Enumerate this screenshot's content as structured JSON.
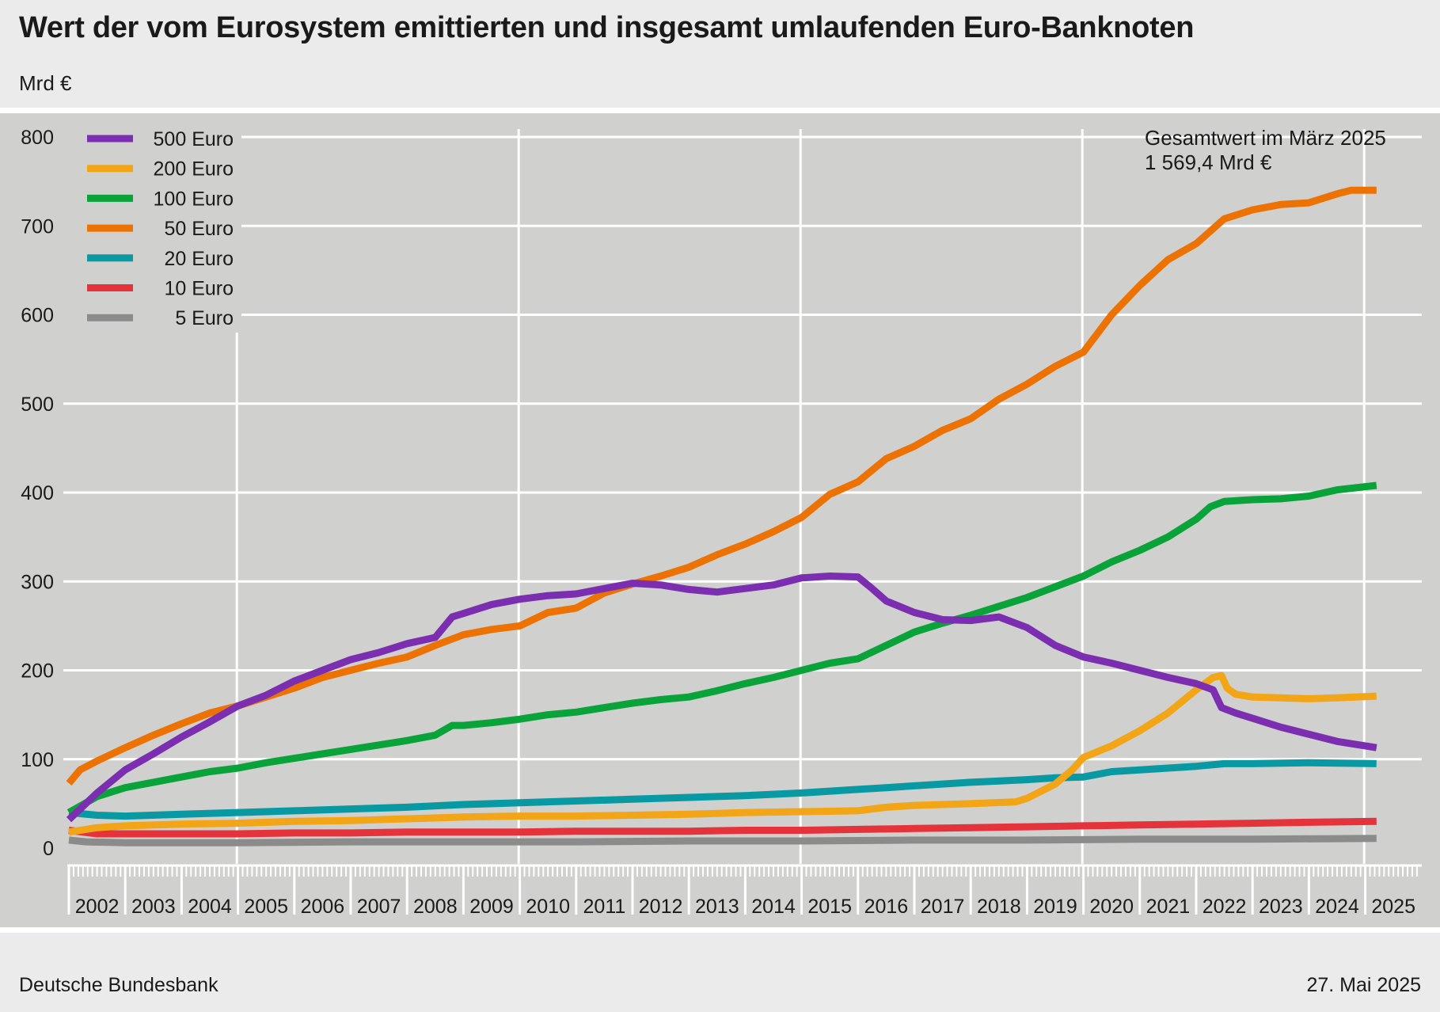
{
  "title": "Wert der vom Eurosystem emittierten und insgesamt umlaufenden Euro-Banknoten",
  "unit": "Mrd €",
  "source": "Deutsche Bundesbank",
  "date": "27. Mai 2025",
  "annotation": {
    "line1": "Gesamtwert im März 2025",
    "line2": "1 569,4 Mrd €"
  },
  "chart_data": {
    "type": "line",
    "title": "Wert der vom Eurosystem emittierten und insgesamt umlaufenden Euro-Banknoten",
    "ylabel": "Mrd €",
    "xlabel": "",
    "ylim": [
      0,
      800
    ],
    "yticks": [
      0,
      100,
      200,
      300,
      400,
      500,
      600,
      700,
      800
    ],
    "xlim": [
      2002,
      2025.25
    ],
    "xtick_labels": [
      "2002",
      "2003",
      "2004",
      "2005",
      "2006",
      "2007",
      "2008",
      "2009",
      "2010",
      "2011",
      "2012",
      "2013",
      "2014",
      "2015",
      "2016",
      "2017",
      "2018",
      "2019",
      "2020",
      "2021",
      "2022",
      "2023",
      "2024",
      "2025"
    ],
    "grid": true,
    "legend_position": "top-left",
    "series": [
      {
        "name": "500 Euro",
        "color": "#7b2fb0",
        "points": [
          [
            2002.0,
            32
          ],
          [
            2002.5,
            62
          ],
          [
            2003.0,
            88
          ],
          [
            2003.5,
            106
          ],
          [
            2004.0,
            125
          ],
          [
            2004.5,
            142
          ],
          [
            2005.0,
            160
          ],
          [
            2005.5,
            172
          ],
          [
            2006.0,
            188
          ],
          [
            2006.5,
            200
          ],
          [
            2007.0,
            212
          ],
          [
            2007.5,
            220
          ],
          [
            2008.0,
            230
          ],
          [
            2008.5,
            237
          ],
          [
            2008.8,
            260
          ],
          [
            2009.0,
            264
          ],
          [
            2009.5,
            274
          ],
          [
            2010.0,
            280
          ],
          [
            2010.5,
            284
          ],
          [
            2011.0,
            286
          ],
          [
            2011.5,
            292
          ],
          [
            2012.0,
            298
          ],
          [
            2012.5,
            296
          ],
          [
            2013.0,
            291
          ],
          [
            2013.5,
            288
          ],
          [
            2014.0,
            292
          ],
          [
            2014.5,
            296
          ],
          [
            2015.0,
            304
          ],
          [
            2015.5,
            306
          ],
          [
            2016.0,
            305
          ],
          [
            2016.25,
            292
          ],
          [
            2016.5,
            278
          ],
          [
            2017.0,
            265
          ],
          [
            2017.5,
            257
          ],
          [
            2018.0,
            256
          ],
          [
            2018.5,
            260
          ],
          [
            2019.0,
            248
          ],
          [
            2019.5,
            228
          ],
          [
            2020.0,
            215
          ],
          [
            2020.5,
            208
          ],
          [
            2021.0,
            200
          ],
          [
            2021.5,
            192
          ],
          [
            2022.0,
            185
          ],
          [
            2022.3,
            178
          ],
          [
            2022.45,
            158
          ],
          [
            2022.7,
            152
          ],
          [
            2023.0,
            146
          ],
          [
            2023.5,
            136
          ],
          [
            2024.0,
            128
          ],
          [
            2024.5,
            120
          ],
          [
            2025.2,
            113
          ]
        ]
      },
      {
        "name": "200 Euro",
        "color": "#f2a516",
        "points": [
          [
            2002.0,
            18
          ],
          [
            2002.5,
            23
          ],
          [
            2003.0,
            25
          ],
          [
            2004.0,
            27
          ],
          [
            2005.0,
            28
          ],
          [
            2006.0,
            30
          ],
          [
            2007.0,
            31
          ],
          [
            2008.0,
            33
          ],
          [
            2008.6,
            34
          ],
          [
            2009.0,
            35
          ],
          [
            2010.0,
            36
          ],
          [
            2011.0,
            36
          ],
          [
            2012.0,
            37
          ],
          [
            2013.0,
            38
          ],
          [
            2014.0,
            40
          ],
          [
            2015.0,
            41
          ],
          [
            2016.0,
            42
          ],
          [
            2016.5,
            46
          ],
          [
            2017.0,
            48
          ],
          [
            2018.0,
            50
          ],
          [
            2018.8,
            52
          ],
          [
            2019.0,
            56
          ],
          [
            2019.5,
            72
          ],
          [
            2019.8,
            88
          ],
          [
            2020.0,
            102
          ],
          [
            2020.5,
            115
          ],
          [
            2021.0,
            132
          ],
          [
            2021.5,
            152
          ],
          [
            2022.0,
            178
          ],
          [
            2022.3,
            192
          ],
          [
            2022.45,
            194
          ],
          [
            2022.55,
            180
          ],
          [
            2022.7,
            173
          ],
          [
            2023.0,
            170
          ],
          [
            2023.5,
            169
          ],
          [
            2024.0,
            168
          ],
          [
            2024.5,
            169
          ],
          [
            2025.2,
            171
          ]
        ]
      },
      {
        "name": "100 Euro",
        "color": "#09a33a",
        "points": [
          [
            2002.0,
            40
          ],
          [
            2002.5,
            58
          ],
          [
            2003.0,
            68
          ],
          [
            2003.5,
            74
          ],
          [
            2004.0,
            80
          ],
          [
            2004.5,
            86
          ],
          [
            2005.0,
            90
          ],
          [
            2005.5,
            96
          ],
          [
            2006.0,
            101
          ],
          [
            2006.5,
            106
          ],
          [
            2007.0,
            111
          ],
          [
            2007.5,
            116
          ],
          [
            2008.0,
            121
          ],
          [
            2008.5,
            127
          ],
          [
            2008.8,
            138
          ],
          [
            2009.0,
            138
          ],
          [
            2009.5,
            141
          ],
          [
            2010.0,
            145
          ],
          [
            2010.5,
            150
          ],
          [
            2011.0,
            153
          ],
          [
            2011.5,
            158
          ],
          [
            2012.0,
            163
          ],
          [
            2012.5,
            167
          ],
          [
            2013.0,
            170
          ],
          [
            2013.5,
            177
          ],
          [
            2014.0,
            185
          ],
          [
            2014.5,
            192
          ],
          [
            2015.0,
            200
          ],
          [
            2015.5,
            208
          ],
          [
            2016.0,
            213
          ],
          [
            2016.5,
            228
          ],
          [
            2017.0,
            243
          ],
          [
            2017.5,
            253
          ],
          [
            2018.0,
            262
          ],
          [
            2018.5,
            272
          ],
          [
            2019.0,
            282
          ],
          [
            2019.5,
            294
          ],
          [
            2020.0,
            306
          ],
          [
            2020.5,
            322
          ],
          [
            2021.0,
            335
          ],
          [
            2021.5,
            350
          ],
          [
            2022.0,
            370
          ],
          [
            2022.25,
            384
          ],
          [
            2022.5,
            390
          ],
          [
            2023.0,
            392
          ],
          [
            2023.5,
            393
          ],
          [
            2024.0,
            396
          ],
          [
            2024.5,
            403
          ],
          [
            2025.2,
            408
          ]
        ]
      },
      {
        "name": "50 Euro",
        "color": "#ec7204",
        "points": [
          [
            2002.0,
            73
          ],
          [
            2002.2,
            88
          ],
          [
            2002.5,
            98
          ],
          [
            2003.0,
            113
          ],
          [
            2003.5,
            127
          ],
          [
            2004.0,
            140
          ],
          [
            2004.5,
            152
          ],
          [
            2005.0,
            160
          ],
          [
            2005.5,
            170
          ],
          [
            2006.0,
            180
          ],
          [
            2006.5,
            192
          ],
          [
            2007.0,
            200
          ],
          [
            2007.5,
            208
          ],
          [
            2008.0,
            215
          ],
          [
            2008.5,
            228
          ],
          [
            2009.0,
            240
          ],
          [
            2009.5,
            246
          ],
          [
            2010.0,
            250
          ],
          [
            2010.5,
            265
          ],
          [
            2011.0,
            270
          ],
          [
            2011.5,
            287
          ],
          [
            2012.0,
            297
          ],
          [
            2012.5,
            306
          ],
          [
            2013.0,
            316
          ],
          [
            2013.5,
            330
          ],
          [
            2014.0,
            342
          ],
          [
            2014.5,
            356
          ],
          [
            2015.0,
            372
          ],
          [
            2015.5,
            398
          ],
          [
            2016.0,
            412
          ],
          [
            2016.5,
            438
          ],
          [
            2017.0,
            452
          ],
          [
            2017.5,
            470
          ],
          [
            2018.0,
            483
          ],
          [
            2018.5,
            505
          ],
          [
            2019.0,
            522
          ],
          [
            2019.5,
            542
          ],
          [
            2020.0,
            558
          ],
          [
            2020.5,
            600
          ],
          [
            2021.0,
            633
          ],
          [
            2021.5,
            662
          ],
          [
            2022.0,
            680
          ],
          [
            2022.5,
            708
          ],
          [
            2023.0,
            718
          ],
          [
            2023.5,
            724
          ],
          [
            2024.0,
            726
          ],
          [
            2024.5,
            736
          ],
          [
            2024.75,
            740
          ],
          [
            2025.2,
            740
          ]
        ]
      },
      {
        "name": "20 Euro",
        "color": "#0899a3",
        "points": [
          [
            2002.0,
            40
          ],
          [
            2002.5,
            37
          ],
          [
            2003.0,
            36
          ],
          [
            2004.0,
            38
          ],
          [
            2005.0,
            40
          ],
          [
            2006.0,
            42
          ],
          [
            2007.0,
            44
          ],
          [
            2008.0,
            46
          ],
          [
            2009.0,
            49
          ],
          [
            2010.0,
            51
          ],
          [
            2011.0,
            53
          ],
          [
            2012.0,
            55
          ],
          [
            2013.0,
            57
          ],
          [
            2014.0,
            59
          ],
          [
            2015.0,
            62
          ],
          [
            2016.0,
            66
          ],
          [
            2016.5,
            68
          ],
          [
            2017.0,
            70
          ],
          [
            2018.0,
            74
          ],
          [
            2019.0,
            77
          ],
          [
            2019.5,
            79
          ],
          [
            2020.0,
            80
          ],
          [
            2020.5,
            86
          ],
          [
            2021.0,
            88
          ],
          [
            2022.0,
            92
          ],
          [
            2022.5,
            95
          ],
          [
            2023.0,
            95
          ],
          [
            2024.0,
            96
          ],
          [
            2025.2,
            95
          ]
        ]
      },
      {
        "name": "10 Euro",
        "color": "#e5333c",
        "points": [
          [
            2002.0,
            20
          ],
          [
            2002.5,
            16
          ],
          [
            2003.0,
            16
          ],
          [
            2004.0,
            16
          ],
          [
            2005.0,
            16
          ],
          [
            2006.0,
            17
          ],
          [
            2007.0,
            17
          ],
          [
            2008.0,
            18
          ],
          [
            2009.0,
            18
          ],
          [
            2010.0,
            18
          ],
          [
            2011.0,
            19
          ],
          [
            2012.0,
            19
          ],
          [
            2013.0,
            19
          ],
          [
            2014.0,
            20
          ],
          [
            2015.0,
            20
          ],
          [
            2016.0,
            21
          ],
          [
            2017.0,
            22
          ],
          [
            2018.0,
            23
          ],
          [
            2019.0,
            24
          ],
          [
            2020.0,
            25
          ],
          [
            2021.0,
            26
          ],
          [
            2022.0,
            27
          ],
          [
            2023.0,
            28
          ],
          [
            2024.0,
            29
          ],
          [
            2025.2,
            30
          ]
        ]
      },
      {
        "name": "5 Euro",
        "color": "#8b8b8b",
        "points": [
          [
            2002.0,
            9
          ],
          [
            2002.3,
            7
          ],
          [
            2003.0,
            6
          ],
          [
            2005.0,
            6
          ],
          [
            2007.0,
            7
          ],
          [
            2009.0,
            7
          ],
          [
            2011.0,
            7
          ],
          [
            2013.0,
            8
          ],
          [
            2015.0,
            8
          ],
          [
            2017.0,
            9
          ],
          [
            2019.0,
            9
          ],
          [
            2021.0,
            10
          ],
          [
            2023.0,
            10
          ],
          [
            2025.2,
            11
          ]
        ]
      }
    ]
  }
}
